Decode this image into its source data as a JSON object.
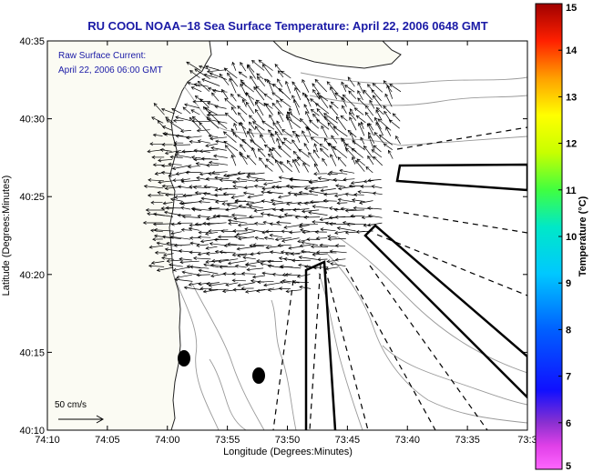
{
  "title": "RU COOL  NOAA−18  Sea Surface Temperature:  April 22, 2006 0648 GMT",
  "legend": {
    "line1": "Raw Surface Current:",
    "line2": "April 22, 2006 06:00 GMT"
  },
  "scale_label": "50 cm/s",
  "x_axis": {
    "label": "Longitude (Degrees:Minutes)",
    "ticks": [
      "74:10",
      "74:05",
      "74:00",
      "73:55",
      "73:50",
      "73:45",
      "73:40",
      "73:35",
      "73:3"
    ]
  },
  "y_axis": {
    "label": "Latitude (Degrees:Minutes)",
    "ticks": [
      "40:35",
      "40:30",
      "40:25",
      "40:20",
      "40:15",
      "40:10"
    ]
  },
  "colorbar": {
    "label": "Temperature (°C)",
    "ticks": [
      "15",
      "14",
      "13",
      "12",
      "11",
      "10",
      "9",
      "8",
      "7",
      "6",
      "5"
    ],
    "min": 5,
    "max": 15
  },
  "colors": {
    "title": "#1a1aa6",
    "land": "#fbfbf3",
    "vectors": "#000000",
    "bathymetry": "#9a9a9a"
  }
}
